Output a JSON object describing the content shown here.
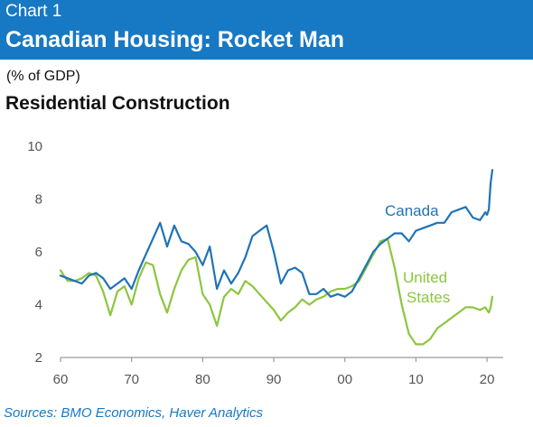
{
  "header": {
    "chart_number": "Chart 1",
    "title": "Canadian Housing: Rocket Man"
  },
  "unit_label": "(% of GDP)",
  "subtitle": "Residential Construction",
  "source": "Sources: BMO Economics, Haver Analytics",
  "colors": {
    "header_bg": "#1779c4",
    "canada": "#1f73b7",
    "united_states": "#8cc63f"
  },
  "chart_data": {
    "type": "line",
    "title": "Residential Construction",
    "ylabel": "(% of GDP)",
    "xlabel": "",
    "xlim": [
      1960,
      2021
    ],
    "ylim": [
      2,
      10
    ],
    "x_ticks": [
      1960,
      1970,
      1980,
      1990,
      2000,
      2010,
      2020
    ],
    "x_tick_labels": [
      "60",
      "70",
      "80",
      "90",
      "00",
      "10",
      "20"
    ],
    "y_ticks": [
      2,
      4,
      6,
      8,
      10
    ],
    "y_tick_labels": [
      "2",
      "4",
      "6",
      "8",
      "10"
    ],
    "grid": false,
    "legend": "direct labels",
    "series": [
      {
        "name": "Canada",
        "x": [
          1960,
          1961,
          1962,
          1963,
          1964,
          1965,
          1966,
          1967,
          1968,
          1969,
          1970,
          1971,
          1972,
          1973,
          1974,
          1975,
          1976,
          1977,
          1978,
          1979,
          1980,
          1981,
          1982,
          1983,
          1984,
          1985,
          1986,
          1987,
          1988,
          1989,
          1990,
          1991,
          1992,
          1993,
          1994,
          1995,
          1996,
          1997,
          1998,
          1999,
          2000,
          2001,
          2002,
          2003,
          2004,
          2005,
          2006,
          2007,
          2008,
          2009,
          2010,
          2011,
          2012,
          2013,
          2014,
          2015,
          2016,
          2017,
          2018,
          2019,
          2019.75,
          2020,
          2020.25,
          2020.5,
          2020.75
        ],
        "values": [
          5.1,
          5.0,
          4.9,
          4.8,
          5.1,
          5.2,
          5.0,
          4.6,
          4.8,
          5.0,
          4.6,
          5.3,
          5.9,
          6.5,
          7.1,
          6.2,
          7.0,
          6.4,
          6.3,
          6.0,
          5.5,
          6.2,
          4.6,
          5.3,
          4.8,
          5.2,
          5.8,
          6.6,
          6.8,
          7.0,
          6.0,
          4.8,
          5.3,
          5.4,
          5.2,
          4.4,
          4.4,
          4.6,
          4.3,
          4.4,
          4.3,
          4.5,
          5.0,
          5.5,
          6.0,
          6.3,
          6.5,
          6.7,
          6.7,
          6.4,
          6.8,
          6.9,
          7.0,
          7.1,
          7.1,
          7.5,
          7.6,
          7.7,
          7.3,
          7.2,
          7.5,
          7.4,
          7.6,
          8.6,
          9.1
        ]
      },
      {
        "name": "United States",
        "x": [
          1960,
          1961,
          1962,
          1963,
          1964,
          1965,
          1966,
          1967,
          1968,
          1969,
          1970,
          1971,
          1972,
          1973,
          1974,
          1975,
          1976,
          1977,
          1978,
          1979,
          1980,
          1981,
          1982,
          1983,
          1984,
          1985,
          1986,
          1987,
          1988,
          1989,
          1990,
          1991,
          1992,
          1993,
          1994,
          1995,
          1996,
          1997,
          1998,
          1999,
          2000,
          2001,
          2002,
          2003,
          2004,
          2005,
          2006,
          2007,
          2008,
          2009,
          2010,
          2011,
          2012,
          2013,
          2014,
          2015,
          2016,
          2017,
          2018,
          2019,
          2019.75,
          2020,
          2020.25,
          2020.5,
          2020.75
        ],
        "values": [
          5.3,
          4.9,
          4.9,
          5.0,
          5.2,
          5.1,
          4.5,
          3.6,
          4.5,
          4.7,
          4.0,
          5.0,
          5.6,
          5.5,
          4.4,
          3.7,
          4.6,
          5.3,
          5.7,
          5.8,
          4.4,
          4.0,
          3.2,
          4.3,
          4.6,
          4.4,
          4.9,
          4.7,
          4.4,
          4.1,
          3.8,
          3.4,
          3.7,
          3.9,
          4.2,
          4.0,
          4.2,
          4.3,
          4.5,
          4.6,
          4.6,
          4.7,
          4.9,
          5.4,
          5.9,
          6.4,
          6.5,
          5.4,
          4.0,
          2.9,
          2.5,
          2.5,
          2.7,
          3.1,
          3.3,
          3.5,
          3.7,
          3.9,
          3.9,
          3.8,
          3.9,
          3.8,
          3.7,
          3.9,
          4.3
        ]
      }
    ],
    "annotations": [
      {
        "series": "Canada",
        "text": "Canada"
      },
      {
        "series": "United States",
        "text": "United States"
      }
    ]
  }
}
